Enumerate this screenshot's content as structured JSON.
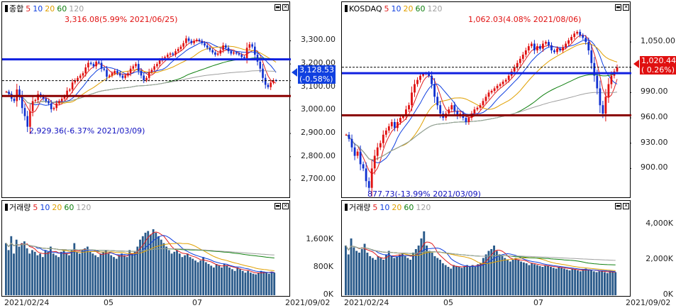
{
  "chart_data": [
    {
      "type": "candlestick",
      "panel": "kospi-price",
      "title": "종합",
      "ma_periods": [
        "5",
        "10",
        "20",
        "60",
        "120"
      ],
      "ma_colors": {
        "5": "#e02020",
        "10": "#1040e0",
        "20": "#e0a000",
        "60": "#108010",
        "120": "#a0a0a0"
      },
      "yticks": [
        "3,300.00",
        "3,200.00",
        "3,100.00",
        "3,000.00",
        "2,900.00",
        "2,800.00",
        "2,700.00"
      ],
      "ytick_values": [
        3300,
        3200,
        3100,
        3000,
        2900,
        2800,
        2700
      ],
      "ylim": [
        2640,
        3375
      ],
      "x_start_label": "2021/02/24",
      "x_month_labels": [
        "05",
        "07"
      ],
      "x_end_label": "2021/09/02",
      "high_annotation": "3,316.08(5.99% 2021/06/25)",
      "low_annotation": "2,929.36(-6.37% 2021/03/09)",
      "current_value": "3,128.53",
      "current_change": "(-0.58%)",
      "hlines": [
        {
          "value": 3220,
          "color": "#1020e0"
        },
        {
          "value": 3062,
          "color": "#8b0000"
        }
      ],
      "close_series": [
        3080,
        3070,
        3050,
        3040,
        3090,
        3060,
        3010,
        2975,
        2929,
        2996,
        3040,
        3045,
        3070,
        3060,
        3050,
        3040,
        3030,
        3005,
        3010,
        3030,
        3040,
        3050,
        3060,
        3085,
        3090,
        3120,
        3130,
        3140,
        3150,
        3160,
        3185,
        3205,
        3200,
        3190,
        3210,
        3205,
        3180,
        3175,
        3145,
        3150,
        3160,
        3170,
        3160,
        3150,
        3140,
        3150,
        3160,
        3180,
        3190,
        3200,
        3170,
        3150,
        3130,
        3140,
        3165,
        3175,
        3190,
        3200,
        3215,
        3225,
        3230,
        3240,
        3245,
        3240,
        3255,
        3265,
        3275,
        3290,
        3310,
        3300,
        3290,
        3300,
        3305,
        3300,
        3290,
        3280,
        3270,
        3260,
        3250,
        3240,
        3245,
        3260,
        3280,
        3270,
        3255,
        3245,
        3250,
        3245,
        3240,
        3230,
        3225,
        3270,
        3285,
        3275,
        3240,
        3210,
        3180,
        3140,
        3110,
        3100,
        3120,
        3130,
        3128
      ]
    },
    {
      "type": "candlestick",
      "panel": "kosdaq-price",
      "title": "KOSDAQ",
      "ma_periods": [
        "5",
        "10",
        "20",
        "60",
        "120"
      ],
      "yticks": [
        "1,050.00",
        "1,020.00",
        "990.00",
        "960.00",
        "930.00",
        "900.00"
      ],
      "ytick_values": [
        1050,
        1020,
        990,
        960,
        930,
        900
      ],
      "ylim": [
        870,
        1072
      ],
      "x_start_label": "2021/02/24",
      "x_month_labels": [
        "05",
        "07"
      ],
      "x_end_label": "2021/09/02",
      "high_annotation": "1,062.03(4.08% 2021/08/06)",
      "low_annotation": "877.73(-13.99% 2021/03/09)",
      "current_value": "1,020.44",
      "current_change": "( 0.26%)",
      "hlines": [
        {
          "value": 1013,
          "color": "#1020e0"
        },
        {
          "value": 963,
          "color": "#8b0000"
        }
      ],
      "close_series": [
        940,
        935,
        925,
        915,
        920,
        905,
        900,
        885,
        877,
        900,
        915,
        925,
        930,
        940,
        945,
        950,
        955,
        948,
        955,
        960,
        962,
        970,
        975,
        990,
        1000,
        1005,
        1010,
        1012,
        1013,
        1010,
        1000,
        985,
        975,
        965,
        960,
        965,
        970,
        975,
        968,
        962,
        965,
        960,
        955,
        960,
        965,
        970,
        972,
        975,
        980,
        985,
        990,
        992,
        995,
        998,
        1000,
        1003,
        1005,
        1010,
        1015,
        1020,
        1025,
        1030,
        1035,
        1040,
        1045,
        1048,
        1040,
        1045,
        1042,
        1048,
        1050,
        1046,
        1040,
        1038,
        1042,
        1040,
        1044,
        1048,
        1052,
        1056,
        1060,
        1062,
        1058,
        1055,
        1050,
        1040,
        1025,
        1010,
        995,
        975,
        965,
        985,
        1000,
        1010,
        1015,
        1020
      ]
    },
    {
      "type": "bar",
      "panel": "kospi-volume",
      "title": "거래량",
      "ma_periods": [
        "5",
        "10",
        "20",
        "60",
        "120"
      ],
      "yticks": [
        "1,600K",
        "800K",
        "0K"
      ],
      "ytick_values": [
        1600,
        800,
        0
      ],
      "ylim": [
        0,
        2350
      ],
      "x_start_label": "2021/02/24",
      "x_month_labels": [
        "05",
        "07"
      ],
      "x_end_label": "2021/09/02",
      "values": [
        1500,
        1300,
        1700,
        1200,
        1600,
        1400,
        1500,
        1550,
        1350,
        1200,
        1300,
        1250,
        1150,
        1200,
        1100,
        1300,
        1250,
        1400,
        1200,
        1150,
        1100,
        1250,
        1300,
        1200,
        1150,
        1300,
        1500,
        1250,
        1200,
        1300,
        1350,
        1400,
        1250,
        1200,
        1150,
        1100,
        1200,
        1250,
        1300,
        1200,
        1150,
        1100,
        1050,
        1150,
        1200,
        1150,
        1100,
        1300,
        1200,
        1250,
        1400,
        1600,
        1700,
        1800,
        1850,
        1750,
        1900,
        1800,
        1700,
        1600,
        1500,
        1400,
        1300,
        1200,
        1250,
        1300,
        1200,
        1100,
        1150,
        1200,
        1100,
        1050,
        1000,
        950,
        1000,
        1100,
        950,
        900,
        850,
        800,
        900,
        850,
        800,
        900,
        850,
        800,
        750,
        700,
        800,
        750,
        700,
        650,
        700,
        650,
        620,
        600,
        650,
        700,
        680,
        650,
        620,
        680,
        650
      ]
    },
    {
      "type": "bar",
      "panel": "kosdaq-volume",
      "title": "거래량",
      "ma_periods": [
        "5",
        "10",
        "20",
        "60",
        "120"
      ],
      "yticks": [
        "4,000K",
        "2,000K",
        "0K"
      ],
      "ytick_values": [
        4000,
        2000,
        0
      ],
      "ylim": [
        0,
        4600
      ],
      "x_start_label": "2021/02/24",
      "x_month_labels": [
        "05",
        "07"
      ],
      "x_end_label": "2021/09/02",
      "values": [
        2800,
        2300,
        3200,
        2700,
        2500,
        2400,
        2600,
        2900,
        2400,
        2200,
        2100,
        2000,
        2200,
        2100,
        2000,
        2300,
        2500,
        2200,
        2100,
        2200,
        2300,
        2400,
        2200,
        2100,
        2000,
        2400,
        2600,
        2800,
        3200,
        3600,
        2800,
        2500,
        2400,
        2200,
        2100,
        2000,
        1800,
        1700,
        1600,
        1500,
        1700,
        1650,
        1600,
        1550,
        1600,
        1700,
        1650,
        1700,
        1600,
        1750,
        1800,
        2100,
        2300,
        2500,
        2600,
        2800,
        2500,
        2300,
        2200,
        2100,
        2000,
        1900,
        2000,
        2100,
        2000,
        1900,
        1850,
        1800,
        1700,
        1800,
        1750,
        1700,
        1650,
        1600,
        1700,
        1650,
        1600,
        1550,
        1500,
        1600,
        1550,
        1500,
        1450,
        1400,
        1500,
        1450,
        1400,
        1350,
        1400,
        1500,
        1450,
        1400,
        1350,
        1300,
        1350,
        1400,
        1300,
        1250,
        1300,
        1350,
        1300
      ]
    }
  ]
}
